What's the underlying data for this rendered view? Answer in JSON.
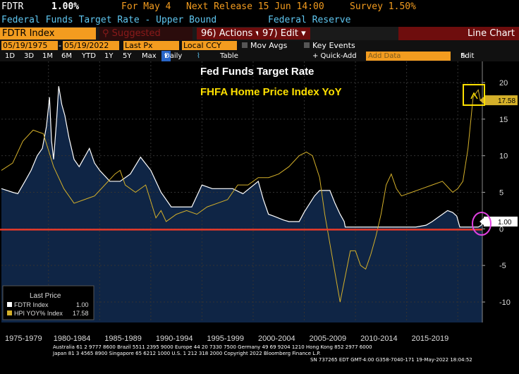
{
  "header": {
    "ticker": "FDTR",
    "value": "1.00%",
    "for_label": "For May 4",
    "next_release": "Next Release 15 Jun 14:00",
    "survey": "Survey 1.50%",
    "description": "Federal Funds Target Rate - Upper Bound",
    "source": "Federal Reserve"
  },
  "toolbar": {
    "security": "FDTR Index",
    "suggested": "Suggested Charts",
    "actions": "Actions",
    "actions_num": "96)",
    "edit": "Edit",
    "edit_num": "97)",
    "chart_type": "Line Chart"
  },
  "controls": {
    "start_date": "05/19/1975",
    "end_date": "05/19/2022",
    "price_field": "Last Px",
    "currency": "Local CCY",
    "mov_avgs": "Mov Avgs",
    "key_events": "Key Events"
  },
  "ranges": {
    "items": [
      "1D",
      "3D",
      "1M",
      "6M",
      "YTD",
      "1Y",
      "5Y",
      "Max"
    ],
    "frequency": "Daily",
    "table": "Table",
    "quick_add": "+ Quick-Add",
    "add_data": "Add Data",
    "edit_chart": "Edit Chart"
  },
  "chart_data": {
    "type": "line",
    "title": "Fed Funds Target Rate",
    "subtitle": "FHFA Home Price Index YoY",
    "x_tick_labels": [
      "1975-1979",
      "1980-1984",
      "1985-1989",
      "1990-1994",
      "1995-1999",
      "2000-2004",
      "2005-2009",
      "2010-2014",
      "2015-2019"
    ],
    "y_ticks": [
      20,
      15,
      10,
      5,
      0,
      -5,
      -10
    ],
    "ylim": [
      -10,
      20
    ],
    "xlim": [
      1975.4,
      2022.4
    ],
    "last_value_fdtr": "1.00",
    "last_value_hpi": "17.58",
    "series": [
      {
        "name": "FDTR Index",
        "color": "#ffffff",
        "x": [
          1975.4,
          1976.5,
          1977.0,
          1977.7,
          1978.3,
          1978.9,
          1979.4,
          1979.8,
          1980.1,
          1980.3,
          1980.5,
          1980.8,
          1981.0,
          1981.3,
          1981.6,
          1982.0,
          1982.5,
          1983.0,
          1984.0,
          1984.5,
          1985.0,
          1986.0,
          1987.0,
          1988.0,
          1989.0,
          1990.0,
          1991.0,
          1992.0,
          1994.0,
          1995.0,
          1996.0,
          1998.0,
          1999.0,
          2000.5,
          2001.0,
          2001.5,
          2002.0,
          2003.0,
          2003.5,
          2004.5,
          2005.0,
          2006.0,
          2006.5,
          2007.5,
          2008.0,
          2008.5,
          2008.9,
          2009.0,
          2015.9,
          2016.9,
          2017.5,
          2018.0,
          2018.5,
          2019.0,
          2019.5,
          2019.9,
          2020.2,
          2021.0,
          2022.0,
          2022.3,
          2022.4
        ],
        "y": [
          5.5,
          5.0,
          4.8,
          6.5,
          8.0,
          10.0,
          11.0,
          14.0,
          18.0,
          12.0,
          9.5,
          15.0,
          19.5,
          17.0,
          15.5,
          12.5,
          9.5,
          8.5,
          11.0,
          9.0,
          8.0,
          6.5,
          6.5,
          7.5,
          9.8,
          8.0,
          5.0,
          3.0,
          3.0,
          6.0,
          5.5,
          5.5,
          4.8,
          6.5,
          4.0,
          2.0,
          1.75,
          1.2,
          1.0,
          1.0,
          2.3,
          4.5,
          5.25,
          5.25,
          3.5,
          2.0,
          1.0,
          0.25,
          0.25,
          0.5,
          1.0,
          1.5,
          2.0,
          2.5,
          2.25,
          1.75,
          0.25,
          0.25,
          0.25,
          0.5,
          1.0
        ]
      },
      {
        "name": "HPI YOY% Index",
        "color": "#d4b02a",
        "x": [
          1975.4,
          1976.5,
          1977.5,
          1978.5,
          1979.5,
          1980.5,
          1981.5,
          1982.5,
          1983.5,
          1984.5,
          1985.5,
          1986.5,
          1987.0,
          1987.5,
          1988.5,
          1989.5,
          1990.5,
          1991.0,
          1991.5,
          1992.5,
          1993.5,
          1994.5,
          1995.5,
          1996.5,
          1997.5,
          1998.5,
          1999.5,
          2000.5,
          2001.5,
          2002.5,
          2003.5,
          2004.5,
          2005.2,
          2005.8,
          2006.5,
          2007.0,
          2007.5,
          2008.0,
          2008.5,
          2009.0,
          2009.5,
          2010.0,
          2010.5,
          2011.0,
          2011.5,
          2012.0,
          2012.5,
          2013.0,
          2013.5,
          2014.0,
          2014.5,
          2015.5,
          2016.5,
          2017.5,
          2018.5,
          2019.5,
          2020.0,
          2020.5,
          2021.0,
          2021.5,
          2022.0,
          2022.2
        ],
        "y": [
          8.0,
          9.0,
          12.0,
          13.5,
          13.0,
          8.5,
          5.5,
          3.5,
          4.0,
          4.5,
          6.0,
          7.5,
          8.0,
          6.0,
          5.0,
          6.0,
          1.5,
          2.5,
          1.0,
          2.0,
          2.5,
          2.0,
          3.0,
          3.5,
          4.0,
          6.0,
          6.0,
          7.0,
          7.0,
          7.5,
          8.5,
          10.0,
          10.5,
          10.0,
          7.0,
          2.0,
          -2.0,
          -6.0,
          -10.0,
          -6.5,
          -3.0,
          -3.0,
          -5.0,
          -5.5,
          -3.5,
          -1.0,
          2.0,
          6.0,
          7.5,
          5.5,
          4.5,
          5.0,
          5.5,
          6.0,
          6.5,
          5.0,
          5.5,
          6.5,
          11.0,
          18.0,
          19.0,
          17.58
        ]
      }
    ]
  },
  "legend": {
    "title": "Last Price",
    "fdtr_name": "FDTR Index",
    "fdtr_value": "1.00",
    "hpi_name": "HPI YOY% Index",
    "hpi_value": "17.58"
  },
  "footer": {
    "line1": "Australia 61 2 9777 8600 Brazil 5511 2395 9000 Europe 44 20 7330 7500 Germany 49 69 9204 1210 Hong Kong 852 2977 6000",
    "line2": "Japan 81 3 4565 8900        Singapore 65 6212 1000        U.S. 1 212 318 2000            Copyright 2022 Bloomberg Finance L.P.",
    "line3": "SN 737265 EDT  GMT-4:00 G358-7040-171 19-May-2022 18:04:52"
  },
  "colors": {
    "orange": "#f39c1f",
    "area_fill": "#0f2545",
    "hpi_line": "#d4b02a",
    "zero_line": "#e83a2a",
    "highlight_box": "#ffe000",
    "highlight_circle": "#e040e0"
  }
}
